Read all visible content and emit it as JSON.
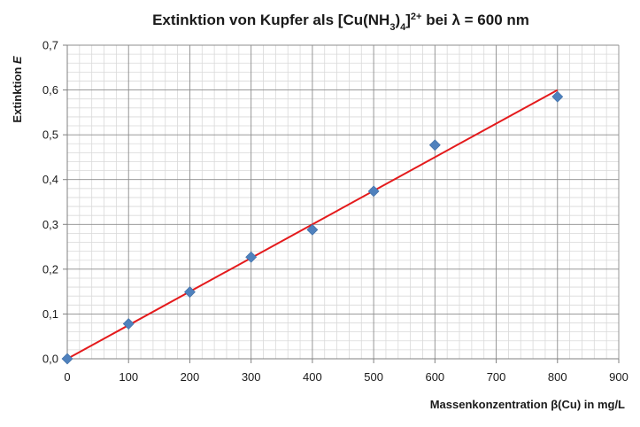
{
  "chart_data": {
    "type": "scatter",
    "title": {
      "prefix": "Extinktion von Kupfer als [Cu(NH",
      "sub1": "3",
      "mid": ")",
      "sub2": "4",
      "close": "]",
      "sup": "2+",
      "suffix": " bei λ = 600 nm"
    },
    "xlabel": "Massenkonzentration  β(Cu) in mg/L",
    "ylabel": {
      "text": "Extinktion ",
      "symbol": "E"
    },
    "xlim": [
      0,
      900
    ],
    "ylim": [
      0,
      0.7
    ],
    "x_ticks": [
      "0",
      "100",
      "200",
      "300",
      "400",
      "500",
      "600",
      "700",
      "800",
      "900"
    ],
    "y_ticks": [
      "0,0",
      "0,1",
      "0,2",
      "0,3",
      "0,4",
      "0,5",
      "0,6",
      "0,7"
    ],
    "grid": true,
    "series": [
      {
        "type": "scatter",
        "color": "#4f81bd",
        "marker": "diamond",
        "points": [
          {
            "x": 0,
            "y": 0.0
          },
          {
            "x": 100,
            "y": 0.078
          },
          {
            "x": 200,
            "y": 0.149
          },
          {
            "x": 300,
            "y": 0.227
          },
          {
            "x": 400,
            "y": 0.288
          },
          {
            "x": 500,
            "y": 0.374
          },
          {
            "x": 600,
            "y": 0.477
          },
          {
            "x": 800,
            "y": 0.585
          }
        ]
      },
      {
        "type": "line",
        "color": "#e41a1c",
        "points": [
          {
            "x": 0,
            "y": 0.0
          },
          {
            "x": 800,
            "y": 0.6
          }
        ]
      }
    ]
  }
}
